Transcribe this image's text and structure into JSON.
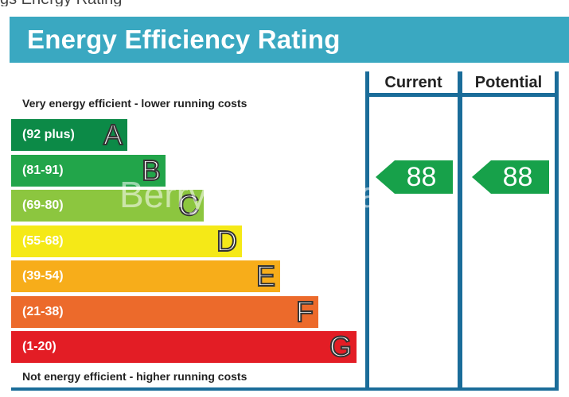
{
  "top_fragment": "gs Energy Rating",
  "title": "Energy Efficiency Rating",
  "watermark": "Berrymans Estates",
  "captions": {
    "top": "Very energy efficient - lower running costs",
    "bottom": "Not energy efficient - higher running costs"
  },
  "colors": {
    "header": "#3aa8c1",
    "frame": "#1a6c99",
    "pointer": "#17a14a"
  },
  "chart_data": {
    "type": "table",
    "title": "Energy Efficiency Rating",
    "columns": [
      "Current",
      "Potential"
    ],
    "bands": [
      {
        "letter": "A",
        "range": "(92 plus)",
        "min": 92,
        "max": 100,
        "color": "#0c8a47"
      },
      {
        "letter": "B",
        "range": "(81-91)",
        "min": 81,
        "max": 91,
        "color": "#22a54a"
      },
      {
        "letter": "C",
        "range": "(69-80)",
        "min": 69,
        "max": 80,
        "color": "#8cc63f"
      },
      {
        "letter": "D",
        "range": "(55-68)",
        "min": 55,
        "max": 68,
        "color": "#f5e917"
      },
      {
        "letter": "E",
        "range": "(39-54)",
        "min": 39,
        "max": 54,
        "color": "#f7ad1a"
      },
      {
        "letter": "F",
        "range": "(21-38)",
        "min": 21,
        "max": 38,
        "color": "#ec6a2b"
      },
      {
        "letter": "G",
        "range": "(1-20)",
        "min": 1,
        "max": 20,
        "color": "#e31d25"
      }
    ],
    "current": 88,
    "potential": 88
  }
}
